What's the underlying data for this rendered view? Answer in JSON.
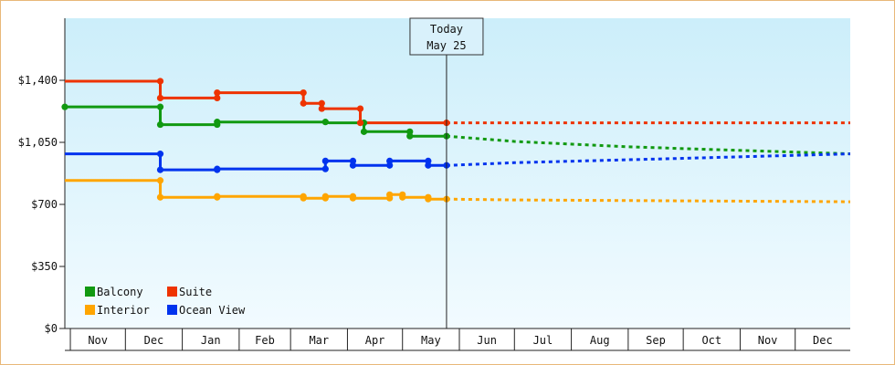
{
  "chart_data": {
    "type": "line",
    "title": "",
    "xlabel": "",
    "ylabel": "",
    "ylim": [
      0,
      1750
    ],
    "y_ticks": [
      {
        "value": 0,
        "label": "$0"
      },
      {
        "value": 350,
        "label": "$350"
      },
      {
        "value": 700,
        "label": "$700"
      },
      {
        "value": 1050,
        "label": "$1,050"
      },
      {
        "value": 1400,
        "label": "$1,400"
      }
    ],
    "x_range": [
      "2024-10-29",
      "2025-12-31"
    ],
    "month_labels": [
      {
        "label": "Nov",
        "start": "2024-11-01",
        "end": "2024-12-01"
      },
      {
        "label": "Dec",
        "start": "2024-12-01",
        "end": "2025-01-01"
      },
      {
        "label": "Jan",
        "start": "2025-01-01",
        "end": "2025-02-01"
      },
      {
        "label": "Feb",
        "start": "2025-02-01",
        "end": "2025-03-01"
      },
      {
        "label": "Mar",
        "start": "2025-03-01",
        "end": "2025-04-01"
      },
      {
        "label": "Apr",
        "start": "2025-04-01",
        "end": "2025-05-01"
      },
      {
        "label": "May",
        "start": "2025-05-01",
        "end": "2025-06-01"
      },
      {
        "label": "Jun",
        "start": "2025-06-01",
        "end": "2025-07-01"
      },
      {
        "label": "Jul",
        "start": "2025-07-01",
        "end": "2025-08-01"
      },
      {
        "label": "Aug",
        "start": "2025-08-01",
        "end": "2025-09-01"
      },
      {
        "label": "Sep",
        "start": "2025-09-01",
        "end": "2025-10-01"
      },
      {
        "label": "Oct",
        "start": "2025-10-01",
        "end": "2025-11-01"
      },
      {
        "label": "Nov",
        "start": "2025-11-01",
        "end": "2025-12-01"
      },
      {
        "label": "Dec",
        "start": "2025-12-01",
        "end": "2025-12-31"
      }
    ],
    "today": {
      "date": "2025-05-25",
      "label_line1": "Today",
      "label_line2": "May 25"
    },
    "grid": false,
    "legend_position": "bottom-left",
    "series": [
      {
        "name": "Balcony",
        "color": "#119911",
        "points": [
          {
            "x": "2024-10-29",
            "y": 1250
          },
          {
            "x": "2024-12-20",
            "y": 1250
          },
          {
            "x": "2024-12-20",
            "y": 1150
          },
          {
            "x": "2025-01-20",
            "y": 1150
          },
          {
            "x": "2025-01-20",
            "y": 1165
          },
          {
            "x": "2025-03-20",
            "y": 1165
          },
          {
            "x": "2025-03-22",
            "y": 1160
          },
          {
            "x": "2025-04-10",
            "y": 1160
          },
          {
            "x": "2025-04-10",
            "y": 1110
          },
          {
            "x": "2025-05-05",
            "y": 1110
          },
          {
            "x": "2025-05-05",
            "y": 1085
          },
          {
            "x": "2025-05-25",
            "y": 1085
          }
        ],
        "projection": [
          {
            "x": "2025-05-25",
            "y": 1085
          },
          {
            "x": "2025-07-01",
            "y": 1055
          },
          {
            "x": "2025-09-01",
            "y": 1025
          },
          {
            "x": "2025-12-31",
            "y": 985
          }
        ]
      },
      {
        "name": "Suite",
        "color": "#ee3300",
        "points": [
          {
            "x": "2024-10-29",
            "y": 1395
          },
          {
            "x": "2024-12-20",
            "y": 1395
          },
          {
            "x": "2024-12-20",
            "y": 1300
          },
          {
            "x": "2025-01-20",
            "y": 1300
          },
          {
            "x": "2025-01-20",
            "y": 1330
          },
          {
            "x": "2025-03-08",
            "y": 1330
          },
          {
            "x": "2025-03-08",
            "y": 1270
          },
          {
            "x": "2025-03-18",
            "y": 1270
          },
          {
            "x": "2025-03-18",
            "y": 1240
          },
          {
            "x": "2025-04-04",
            "y": 1240
          },
          {
            "x": "2025-04-08",
            "y": 1240
          },
          {
            "x": "2025-04-08",
            "y": 1160
          },
          {
            "x": "2025-05-25",
            "y": 1160
          }
        ],
        "projection": [
          {
            "x": "2025-05-25",
            "y": 1160
          },
          {
            "x": "2025-12-31",
            "y": 1160
          }
        ]
      },
      {
        "name": "Interior",
        "color": "#ffa500",
        "points": [
          {
            "x": "2024-10-29",
            "y": 835
          },
          {
            "x": "2024-12-20",
            "y": 835
          },
          {
            "x": "2024-12-20",
            "y": 740
          },
          {
            "x": "2025-01-20",
            "y": 740
          },
          {
            "x": "2025-01-20",
            "y": 745
          },
          {
            "x": "2025-03-08",
            "y": 745
          },
          {
            "x": "2025-03-08",
            "y": 735
          },
          {
            "x": "2025-03-20",
            "y": 735
          },
          {
            "x": "2025-03-20",
            "y": 745
          },
          {
            "x": "2025-04-04",
            "y": 745
          },
          {
            "x": "2025-04-04",
            "y": 735
          },
          {
            "x": "2025-04-24",
            "y": 735
          },
          {
            "x": "2025-04-24",
            "y": 755
          },
          {
            "x": "2025-05-01",
            "y": 755
          },
          {
            "x": "2025-05-01",
            "y": 740
          },
          {
            "x": "2025-05-15",
            "y": 740
          },
          {
            "x": "2025-05-15",
            "y": 730
          },
          {
            "x": "2025-05-25",
            "y": 730
          }
        ],
        "projection": [
          {
            "x": "2025-05-25",
            "y": 730
          },
          {
            "x": "2025-07-01",
            "y": 725
          },
          {
            "x": "2025-12-31",
            "y": 715
          }
        ]
      },
      {
        "name": "Ocean View",
        "color": "#0033ee",
        "points": [
          {
            "x": "2024-10-29",
            "y": 985
          },
          {
            "x": "2024-12-20",
            "y": 985
          },
          {
            "x": "2024-12-20",
            "y": 895
          },
          {
            "x": "2025-01-20",
            "y": 895
          },
          {
            "x": "2025-01-20",
            "y": 900
          },
          {
            "x": "2025-03-20",
            "y": 900
          },
          {
            "x": "2025-03-20",
            "y": 945
          },
          {
            "x": "2025-04-04",
            "y": 945
          },
          {
            "x": "2025-04-04",
            "y": 920
          },
          {
            "x": "2025-04-24",
            "y": 920
          },
          {
            "x": "2025-04-24",
            "y": 945
          },
          {
            "x": "2025-05-15",
            "y": 945
          },
          {
            "x": "2025-05-15",
            "y": 920
          },
          {
            "x": "2025-05-25",
            "y": 920
          }
        ],
        "projection": [
          {
            "x": "2025-05-25",
            "y": 920
          },
          {
            "x": "2025-07-01",
            "y": 935
          },
          {
            "x": "2025-10-01",
            "y": 960
          },
          {
            "x": "2025-12-31",
            "y": 985
          }
        ]
      }
    ],
    "markers": {
      "Balcony": [
        "2024-10-29",
        "2024-12-20",
        "2025-01-20",
        "2025-03-20",
        "2025-04-10",
        "2025-05-05",
        "2025-05-25"
      ],
      "Suite": [
        "2024-12-20",
        "2025-01-20",
        "2025-03-08",
        "2025-03-18",
        "2025-04-08",
        "2025-05-25"
      ],
      "Interior": [
        "2024-12-20",
        "2025-01-20",
        "2025-03-08",
        "2025-03-20",
        "2025-04-04",
        "2025-04-24",
        "2025-05-01",
        "2025-05-15",
        "2025-05-25"
      ],
      "Ocean View": [
        "2024-12-20",
        "2025-01-20",
        "2025-03-20",
        "2025-04-04",
        "2025-04-24",
        "2025-05-15",
        "2025-05-25"
      ]
    }
  }
}
